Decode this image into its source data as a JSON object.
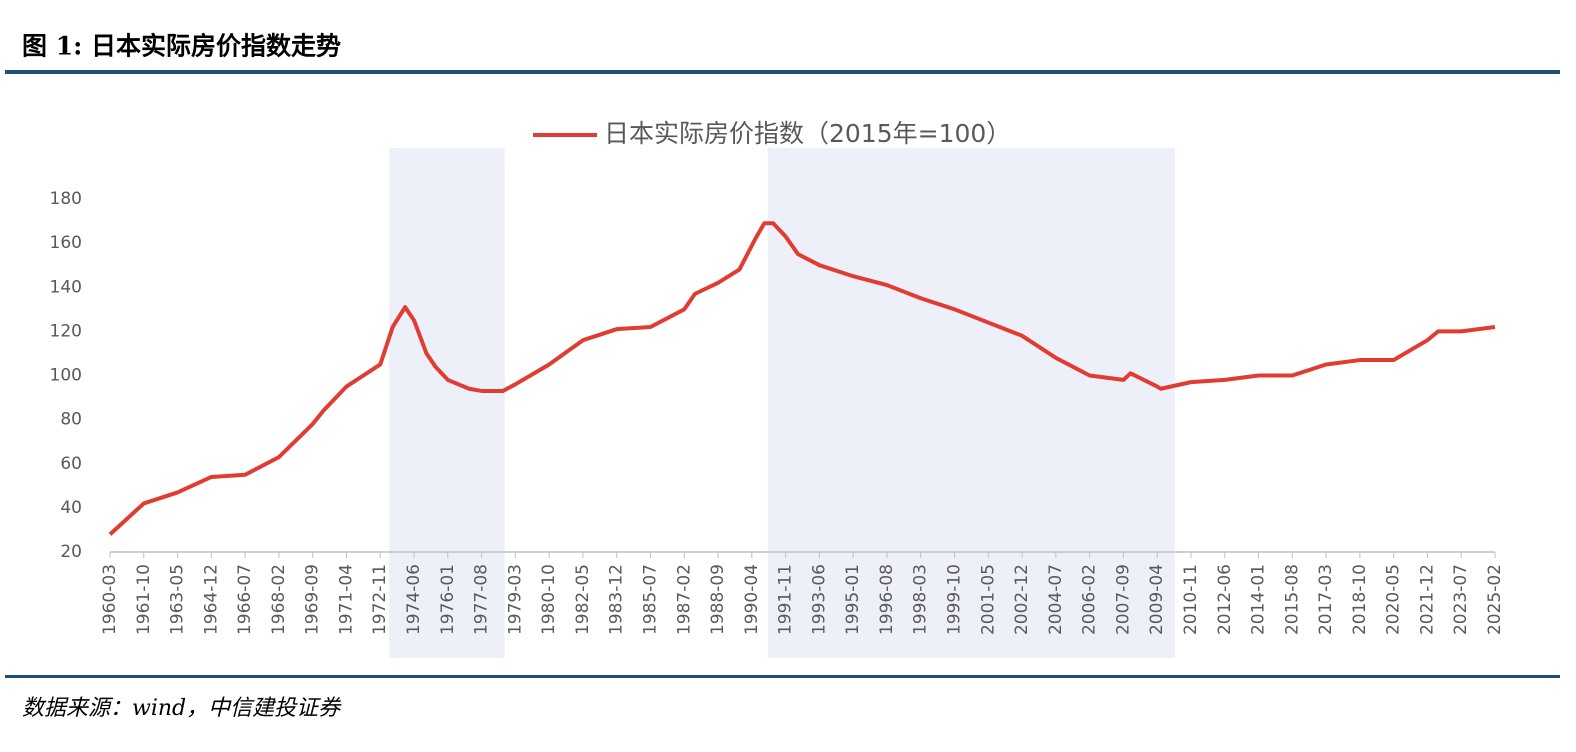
{
  "chart_data": {
    "type": "line",
    "title": "图 1: 日本实际房价指数走势",
    "source": "数据来源：wind，中信建投证券",
    "x": [
      "1960-03",
      "1961-10",
      "1963-05",
      "1964-12",
      "1966-07",
      "1968-02",
      "1969-09",
      "1970-03",
      "1971-04",
      "1972-11",
      "1973-06",
      "1974-01",
      "1974-06",
      "1975-01",
      "1975-06",
      "1976-01",
      "1977-01",
      "1977-08",
      "1978-08",
      "1979-03",
      "1980-10",
      "1982-05",
      "1983-12",
      "1985-07",
      "1987-02",
      "1987-08",
      "1988-09",
      "1989-09",
      "1990-06",
      "1990-11",
      "1991-04",
      "1991-11",
      "1992-06",
      "1993-06",
      "1995-01",
      "1996-08",
      "1998-03",
      "1999-10",
      "2001-05",
      "2002-12",
      "2004-07",
      "2006-02",
      "2007-09",
      "2008-01",
      "2009-04",
      "2009-06",
      "2010-11",
      "2012-06",
      "2014-01",
      "2015-08",
      "2017-03",
      "2018-10",
      "2020-05",
      "2021-12",
      "2022-06",
      "2023-07",
      "2025-02"
    ],
    "series": [
      {
        "name": "日本实际房价指数（2015年=100）",
        "color": "#e03c31",
        "values": [
          28,
          42,
          47,
          54,
          55,
          63,
          78,
          84,
          95,
          105,
          122,
          131,
          125,
          110,
          104,
          98,
          94,
          93,
          93,
          96,
          105,
          116,
          121,
          122,
          130,
          137,
          142,
          148,
          162,
          169,
          169,
          163,
          155,
          150,
          145,
          141,
          135,
          130,
          124,
          118,
          108,
          100,
          98,
          101,
          95,
          94,
          97,
          98,
          100,
          100,
          105,
          107,
          107,
          116,
          120,
          120,
          122
        ]
      }
    ],
    "xlim": [
      "1960-03",
      "2025-02"
    ],
    "xticks": [
      "1960-03",
      "1961-10",
      "1963-05",
      "1964-12",
      "1966-07",
      "1968-02",
      "1969-09",
      "1971-04",
      "1972-11",
      "1974-06",
      "1976-01",
      "1977-08",
      "1979-03",
      "1980-10",
      "1982-05",
      "1983-12",
      "1985-07",
      "1987-02",
      "1988-09",
      "1990-04",
      "1991-11",
      "1993-06",
      "1995-01",
      "1996-08",
      "1998-03",
      "1999-10",
      "2001-05",
      "2002-12",
      "2004-07",
      "2006-02",
      "2007-09",
      "2009-04",
      "2010-11",
      "2012-06",
      "2014-01",
      "2015-08",
      "2017-03",
      "2018-10",
      "2020-05",
      "2021-12",
      "2023-07",
      "2025-02"
    ],
    "ylim": [
      20,
      180
    ],
    "yticks": [
      20,
      40,
      60,
      80,
      100,
      120,
      140,
      160,
      180
    ],
    "shaded_periods": [
      [
        "1973-04",
        "1978-09"
      ],
      [
        "1991-01",
        "2010-02"
      ]
    ],
    "shade_color": "#edf0f8",
    "grid": false,
    "legend": "top"
  }
}
